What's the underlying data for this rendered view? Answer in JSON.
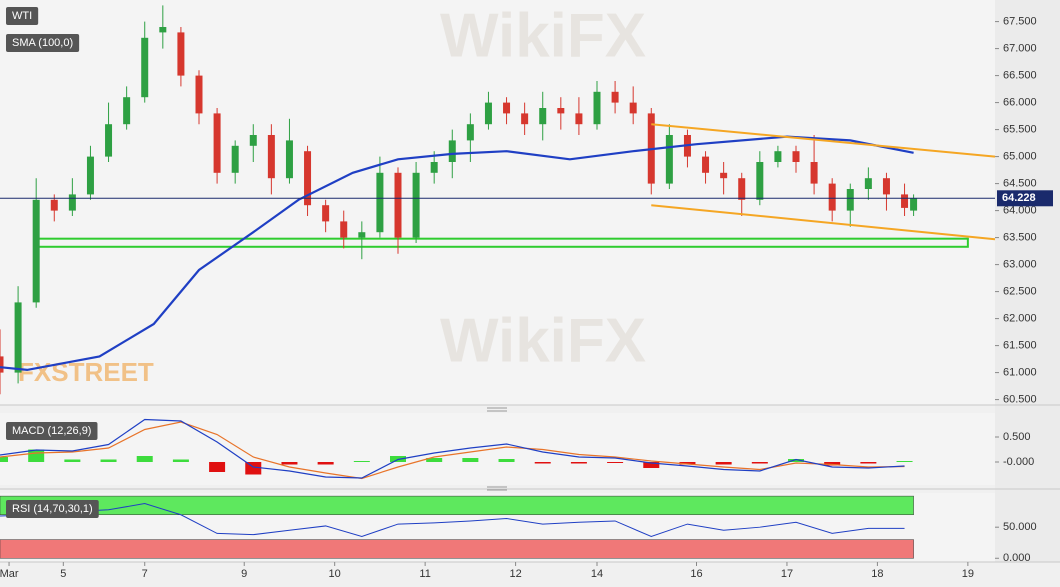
{
  "chart_data": [
    {
      "type": "candlestick",
      "title": "WTI",
      "xlim": [
        0,
        110
      ],
      "xticks": [
        {
          "value": 1,
          "label": "Mar"
        },
        {
          "value": 7,
          "label": "5"
        },
        {
          "value": 16,
          "label": "7"
        },
        {
          "value": 27,
          "label": "9"
        },
        {
          "value": 37,
          "label": "10"
        },
        {
          "value": 47,
          "label": "11"
        },
        {
          "value": 57,
          "label": "12"
        },
        {
          "value": 66,
          "label": "14"
        },
        {
          "value": 77,
          "label": "16"
        },
        {
          "value": 87,
          "label": "17"
        },
        {
          "value": 97,
          "label": "18"
        },
        {
          "value": 107,
          "label": "19"
        }
      ],
      "ylim": [
        60.4,
        67.9
      ],
      "yticks": [
        {
          "value": 60.5,
          "label": "60.500"
        },
        {
          "value": 61,
          "label": "61.000"
        },
        {
          "value": 61.5,
          "label": "61.500"
        },
        {
          "value": 62,
          "label": "62.000"
        },
        {
          "value": 62.5,
          "label": "62.500"
        },
        {
          "value": 63,
          "label": "63.000"
        },
        {
          "value": 63.5,
          "label": "63.500"
        },
        {
          "value": 64,
          "label": "64.000"
        },
        {
          "value": 64.5,
          "label": "64.500"
        },
        {
          "value": 65,
          "label": "65.000"
        },
        {
          "value": 65.5,
          "label": "65.500"
        },
        {
          "value": 66,
          "label": "66.000"
        },
        {
          "value": 66.5,
          "label": "66.500"
        },
        {
          "value": 67,
          "label": "67.000"
        },
        {
          "value": 67.5,
          "label": "67.500"
        }
      ],
      "x": [
        0,
        2,
        4,
        6,
        8,
        10,
        12,
        14,
        16,
        18,
        20,
        22,
        24,
        26,
        28,
        30,
        32,
        34,
        36,
        38,
        40,
        42,
        44,
        46,
        48,
        50,
        52,
        54,
        56,
        58,
        60,
        62,
        64,
        66,
        68,
        70,
        72,
        74,
        76,
        78,
        80,
        82,
        84,
        86,
        88,
        90,
        92,
        94,
        96,
        98,
        100,
        101
      ],
      "open": [
        61.3,
        61.0,
        62.3,
        64.2,
        64.0,
        64.3,
        65.0,
        65.6,
        66.1,
        67.3,
        67.3,
        66.5,
        65.8,
        64.7,
        65.2,
        65.4,
        64.6,
        65.1,
        64.1,
        63.8,
        63.5,
        63.6,
        64.7,
        63.5,
        64.7,
        64.9,
        65.3,
        65.6,
        66.0,
        65.8,
        65.6,
        65.9,
        65.8,
        65.6,
        66.2,
        66.0,
        65.8,
        64.5,
        65.4,
        65.0,
        64.7,
        64.6,
        64.2,
        64.9,
        65.1,
        64.9,
        64.5,
        64.0,
        64.4,
        64.6,
        64.3,
        64.0
      ],
      "high": [
        61.8,
        62.6,
        64.6,
        64.3,
        64.6,
        65.2,
        66.0,
        66.3,
        67.5,
        67.8,
        67.4,
        66.6,
        65.9,
        65.3,
        65.6,
        65.6,
        65.7,
        65.2,
        64.2,
        64.0,
        63.8,
        65.0,
        64.8,
        64.9,
        65.1,
        65.5,
        65.8,
        66.2,
        66.1,
        66.0,
        66.2,
        66.1,
        66.1,
        66.4,
        66.4,
        66.3,
        65.9,
        65.6,
        65.5,
        65.1,
        64.9,
        64.7,
        65.1,
        65.2,
        65.2,
        65.4,
        64.6,
        64.5,
        64.8,
        64.7,
        64.5,
        64.3
      ],
      "low": [
        60.6,
        60.8,
        62.2,
        63.8,
        63.9,
        64.2,
        64.9,
        65.5,
        66.0,
        67.0,
        66.3,
        65.6,
        64.5,
        64.5,
        64.9,
        64.3,
        64.5,
        63.9,
        63.6,
        63.3,
        63.1,
        63.5,
        63.2,
        63.4,
        64.5,
        64.6,
        64.9,
        65.5,
        65.6,
        65.4,
        65.3,
        65.5,
        65.4,
        65.5,
        65.8,
        65.6,
        64.3,
        64.4,
        64.8,
        64.5,
        64.3,
        63.9,
        64.1,
        64.8,
        64.7,
        64.3,
        63.8,
        63.7,
        64.2,
        64.0,
        63.9,
        63.9
      ],
      "close": [
        61.0,
        62.3,
        64.2,
        64.0,
        64.3,
        65.0,
        65.6,
        66.1,
        67.2,
        67.4,
        66.5,
        65.8,
        64.7,
        65.2,
        65.4,
        64.6,
        65.3,
        64.1,
        63.8,
        63.5,
        63.6,
        64.7,
        63.5,
        64.7,
        64.9,
        65.3,
        65.6,
        66.0,
        65.8,
        65.6,
        65.9,
        65.8,
        65.6,
        66.2,
        66.0,
        65.8,
        64.5,
        65.4,
        65.0,
        64.7,
        64.6,
        64.2,
        64.9,
        65.1,
        64.9,
        64.5,
        64.0,
        64.4,
        64.6,
        64.3,
        64.05,
        64.228
      ],
      "up_color": "#2ea043",
      "down_color": "#d6372e",
      "last_price": 64.228,
      "last_price_color": "#1a2a6c",
      "overlays": [
        {
          "name": "SMA (100,0)",
          "color": "#1f3fc4",
          "x": [
            0,
            3,
            11,
            17,
            22,
            28,
            33,
            39,
            44,
            50,
            56,
            63,
            70,
            77,
            87,
            94,
            101
          ],
          "values": [
            61.1,
            61.05,
            61.3,
            61.9,
            62.9,
            63.6,
            64.2,
            64.7,
            64.95,
            65.05,
            65.1,
            64.95,
            65.1,
            65.23,
            65.37,
            65.3,
            65.07
          ]
        }
      ],
      "channel": [
        {
          "x": [
            72,
            110
          ],
          "values": [
            65.6,
            65.0
          ]
        },
        {
          "x": [
            72,
            110
          ],
          "values": [
            64.1,
            63.47
          ]
        }
      ],
      "channel_color": "#f5a623",
      "zone": {
        "x": [
          4,
          107
        ],
        "values": [
          63.33,
          63.48
        ]
      },
      "zone_color": "#2ecc2e",
      "watermarks": [
        "WikiFX",
        "FXSTREET"
      ]
    },
    {
      "type": "macd",
      "title": "MACD (12,26,9)",
      "ylim": [
        -0.46,
        0.98
      ],
      "yticks": [
        {
          "value": 0.5,
          "label": "0.500"
        },
        {
          "value": 0,
          "label": "-0.000"
        }
      ],
      "x": [
        0,
        4,
        8,
        12,
        16,
        20,
        24,
        28,
        32,
        36,
        40,
        44,
        48,
        52,
        56,
        60,
        64,
        68,
        72,
        76,
        80,
        84,
        88,
        92,
        96,
        100
      ],
      "macd": {
        "color": "#1f3fc4",
        "values": [
          0.14,
          0.24,
          0.22,
          0.35,
          0.85,
          0.82,
          0.4,
          -0.1,
          -0.18,
          -0.3,
          -0.32,
          0.05,
          0.18,
          0.28,
          0.36,
          0.2,
          0.1,
          0.08,
          -0.02,
          -0.08,
          -0.15,
          -0.18,
          0.05,
          -0.1,
          -0.12,
          -0.08
        ]
      },
      "signal": {
        "color": "#e8742a",
        "values": [
          0.1,
          0.18,
          0.2,
          0.28,
          0.65,
          0.8,
          0.55,
          0.1,
          -0.1,
          -0.22,
          -0.33,
          -0.1,
          0.1,
          0.2,
          0.3,
          0.25,
          0.15,
          0.1,
          0.02,
          -0.04,
          -0.1,
          -0.15,
          -0.02,
          -0.05,
          -0.1,
          -0.09
        ]
      },
      "histogram": {
        "up_color": "#3ddc3d",
        "down_color": "#e01010",
        "values": [
          0.1,
          0.25,
          0.05,
          0.05,
          0.12,
          0.05,
          -0.2,
          -0.25,
          -0.05,
          -0.05,
          0.02,
          0.12,
          0.08,
          0.08,
          0.06,
          -0.03,
          -0.03,
          -0.02,
          -0.12,
          -0.05,
          -0.05,
          -0.03,
          0.06,
          -0.07,
          -0.03,
          0.02
        ]
      }
    },
    {
      "type": "rsi",
      "title": "RSI (14,70,30,1)",
      "ylim": [
        -6,
        105
      ],
      "yticks": [
        {
          "value": 50,
          "label": "50.000"
        },
        {
          "value": 0,
          "label": "0.000"
        }
      ],
      "x": [
        0,
        4,
        8,
        12,
        16,
        20,
        24,
        28,
        32,
        36,
        40,
        44,
        48,
        52,
        56,
        60,
        64,
        68,
        72,
        76,
        80,
        84,
        88,
        92,
        96,
        100
      ],
      "values": [
        68,
        70,
        75,
        78,
        88,
        70,
        40,
        38,
        45,
        52,
        35,
        55,
        57,
        60,
        64,
        55,
        58,
        60,
        35,
        55,
        45,
        50,
        58,
        40,
        48,
        48
      ],
      "color": "#1f3fc4",
      "bands": [
        {
          "range": [
            70,
            100
          ],
          "color": "#5ee85e"
        },
        {
          "range": [
            0,
            30
          ],
          "color": "#f07878"
        }
      ]
    }
  ]
}
